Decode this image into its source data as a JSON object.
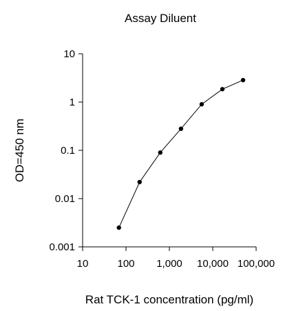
{
  "chart_data": {
    "type": "line",
    "title": "Assay Diluent",
    "xlabel": "Rat TCK-1 concentration (pg/ml)",
    "ylabel": "OD=450 nm",
    "x_scale": "log",
    "y_scale": "log",
    "xlim": [
      10,
      100000
    ],
    "ylim": [
      0.001,
      10
    ],
    "x_ticks": [
      10,
      100,
      1000,
      10000,
      100000
    ],
    "x_tick_labels": [
      "10",
      "100",
      "1,000",
      "10,000",
      "100,000"
    ],
    "y_ticks": [
      0.001,
      0.01,
      0.1,
      1,
      10
    ],
    "y_tick_labels": [
      "0.001",
      "0.01",
      "0.1",
      "1",
      "10"
    ],
    "grid": false,
    "series": [
      {
        "x": [
          68.6,
          206,
          617,
          1852,
          5556,
          16667,
          50000
        ],
        "y": [
          0.0025,
          0.022,
          0.09,
          0.28,
          0.9,
          1.85,
          2.85
        ]
      }
    ],
    "colors": {
      "line": "#000000",
      "marker": "#000000"
    }
  }
}
